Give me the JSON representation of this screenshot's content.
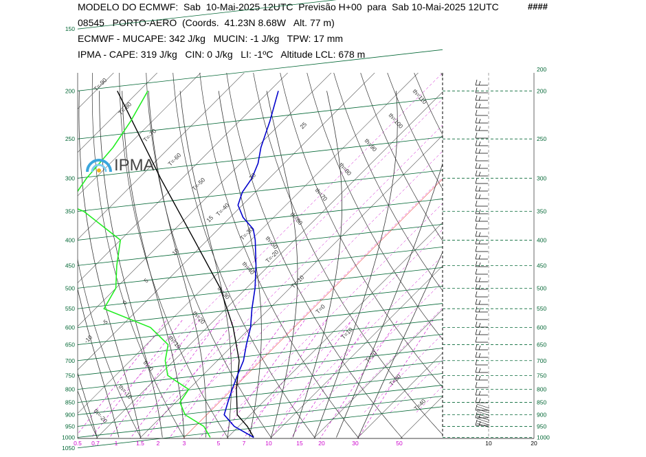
{
  "header": {
    "line1": "MODELO DO ECMWF:  Sab  10-Mai-2025 12UTC  Previsão H+00  para  Sab 10-Mai-2025 12UTC",
    "marker": "####",
    "line2": "08545   PORTO-AERO  (Coords.  41.23N 8.68W   Alt. 77 m)",
    "line3": "ECMWF - MUCAPE: 342 J/kg   MUCIN: -1 J/kg   TPW: 17 mm",
    "line4": "IPMA - CAPE: 319 J/kg   CIN: 0 J/kg   LI: -1ºC   Altitude LCL: 678 m"
  },
  "logo": {
    "text": "IPMA"
  },
  "colors": {
    "temperature": "#0000cc",
    "dewpoint": "#22ee22",
    "parcel": "#000000",
    "isobar": "#006633",
    "dry_adiabat": "#333333",
    "moist_adiabat": "#333333",
    "mixing_ratio": "#cc00cc",
    "isotherm": "#555555",
    "zero_isotherm": "#ee4444"
  },
  "chart_data": {
    "type": "line",
    "title": "",
    "y_axis": {
      "ticks": [
        150,
        200,
        250,
        300,
        350,
        400,
        450,
        500,
        550,
        600,
        650,
        700,
        750,
        800,
        850,
        900,
        950,
        1000,
        1050
      ]
    },
    "x_axis": {
      "ticks": [
        "0.5",
        "0.7",
        "1",
        "1.5",
        "2",
        "3",
        "5",
        "7",
        "10",
        "15",
        "20",
        "30",
        "50"
      ]
    },
    "isotherm_labels": [
      "T=-90",
      "T=-80",
      "T=-70",
      "T=-60",
      "T=-50",
      "T=-40",
      "T=-30",
      "T=-20",
      "T=-10",
      "T=0",
      "T=10",
      "T=20",
      "T=30",
      "T=40"
    ],
    "dry_adiabat_labels": [
      "th=110",
      "th=100",
      "th=90",
      "th=80",
      "th=70",
      "th=60",
      "th=50",
      "th=40",
      "th=30",
      "th=20",
      "th=10",
      "th=0",
      "th=-10",
      "th=-20"
    ],
    "moist_adiabat_labels": [
      "25",
      "20",
      "15",
      "10",
      "5",
      "0",
      "-5",
      "-10"
    ],
    "wind_axis": {
      "ticks": [
        "10",
        "20"
      ],
      "levels": [
        200,
        250,
        300,
        350,
        400,
        450,
        500,
        550,
        600,
        650,
        700,
        750,
        800,
        850,
        900,
        950,
        1000
      ]
    },
    "series": [
      {
        "p": [
          200,
          230,
          260,
          280,
          300,
          320,
          340,
          360,
          380,
          400,
          450,
          500,
          550,
          600,
          650,
          700,
          750,
          800,
          850,
          900,
          950,
          1000
        ],
        "T": [
          -58,
          -53,
          -49,
          -46,
          -44,
          -43,
          -41,
          -37,
          -32,
          -29,
          -23,
          -18,
          -14,
          -10,
          -7,
          -4,
          -2,
          0,
          2,
          4,
          9,
          16
        ]
      },
      {
        "p": [
          200,
          230,
          260,
          300,
          320,
          340,
          350,
          400,
          450,
          500,
          550,
          600,
          650,
          700,
          750,
          800,
          850,
          900,
          950,
          1000
        ],
        "Td": [
          -88,
          -85,
          -83,
          -82,
          -81,
          -80,
          -75,
          -60,
          -55,
          -50,
          -48,
          -33,
          -25,
          -22,
          -18,
          -10,
          -9,
          -5,
          2,
          6
        ]
      },
      {
        "p": [
          200,
          300,
          400,
          500,
          600,
          700,
          800,
          900,
          950,
          1000
        ],
        "T": [
          -95,
          -65,
          -43,
          -26,
          -14,
          -5,
          1,
          7,
          12,
          16
        ]
      }
    ]
  }
}
